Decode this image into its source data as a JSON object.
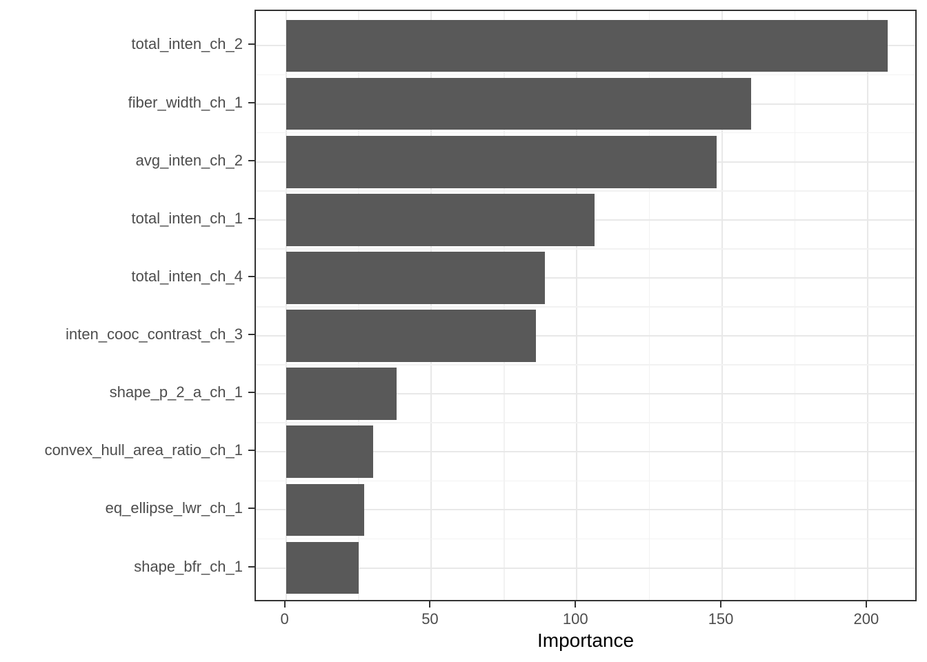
{
  "chart_data": {
    "type": "bar",
    "orientation": "horizontal",
    "title": "",
    "xlabel": "Importance",
    "ylabel": "",
    "categories": [
      "total_inten_ch_2",
      "fiber_width_ch_1",
      "avg_inten_ch_2",
      "total_inten_ch_1",
      "total_inten_ch_4",
      "inten_cooc_contrast_ch_3",
      "shape_p_2_a_ch_1",
      "convex_hull_area_ratio_ch_1",
      "eq_ellipse_lwr_ch_1",
      "shape_bfr_ch_1"
    ],
    "values": [
      207,
      160,
      148,
      106,
      89,
      86,
      38,
      30,
      27,
      25
    ],
    "xlim": [
      0,
      207
    ],
    "x_major_ticks": [
      0,
      50,
      100,
      150,
      200
    ],
    "x_minor_ticks": [
      25,
      75,
      125,
      175
    ],
    "grid": true,
    "legend": "none",
    "style": {
      "bar_fill": "#595959",
      "panel_border": "#333333",
      "grid_major": "#e8e8e8",
      "grid_minor": "#f2f2f2",
      "axis_text": "#4d4d4d",
      "axis_title": "#000000",
      "tick_color": "#333333",
      "background": "#ffffff"
    }
  }
}
